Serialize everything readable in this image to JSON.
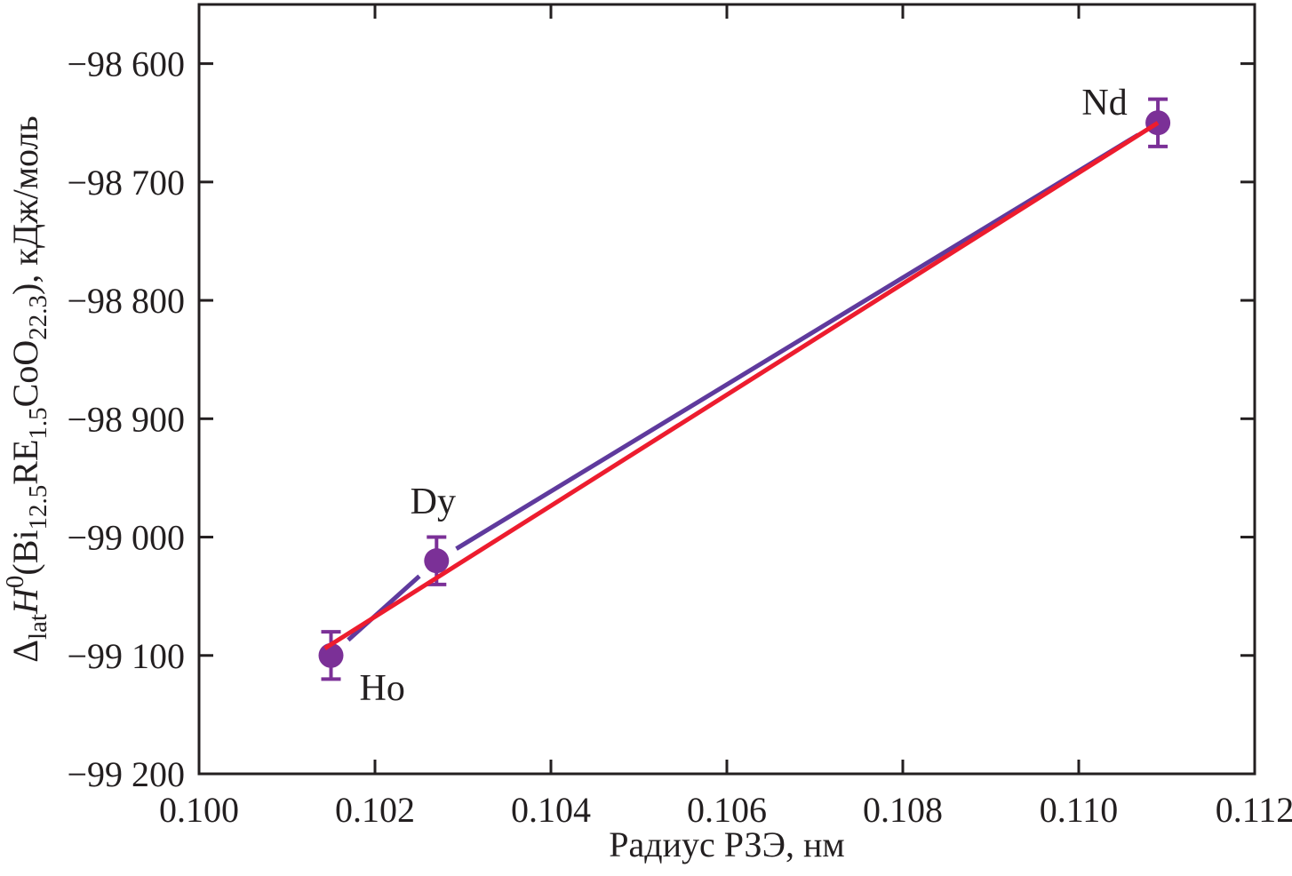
{
  "figure": {
    "background": "#ffffff",
    "frame_color": "#231f20",
    "text_color": "#231f20"
  },
  "chart_data": {
    "type": "scatter",
    "title": "",
    "x_axis": {
      "label_plain": "Радиус РЗЭ, нм",
      "min": 0.1,
      "max": 0.112,
      "ticks": [
        0.1,
        0.102,
        0.104,
        0.106,
        0.108,
        0.11,
        0.112
      ],
      "tick_labels": [
        "0.100",
        "0.102",
        "0.104",
        "0.106",
        "0.108",
        "0.110",
        "0.112"
      ],
      "grid": false
    },
    "y_axis": {
      "label_plain": "ΔlatH0(Bi12.5RE1.5CoO22.3), кДж/моль",
      "label_rich": [
        {
          "t": "Δ"
        },
        {
          "t": "lat",
          "sub": true
        },
        {
          "t": "H",
          "italic": true
        },
        {
          "t": "0",
          "sup": true
        },
        {
          "t": "(Bi"
        },
        {
          "t": "12.5",
          "sub": true
        },
        {
          "t": "RE"
        },
        {
          "t": "1.5",
          "sub": true
        },
        {
          "t": "CoO"
        },
        {
          "t": "22.3",
          "sub": true
        },
        {
          "t": "), кДж/моль"
        }
      ],
      "min": -99200,
      "max": -98550,
      "ticks": [
        -98600,
        -98700,
        -98800,
        -98900,
        -99000,
        -99100,
        -99200
      ],
      "tick_labels": [
        "−98 600",
        "−98 700",
        "−98 800",
        "−98 900",
        "−99 000",
        "−99 100",
        "−99 200"
      ],
      "grid": false
    },
    "series": [
      {
        "name": "experimental-points",
        "type": "scatter+line",
        "line_color": "#5f3a9d",
        "marker_color": "#7b3097",
        "marker": "circle",
        "points": [
          {
            "x": 0.1015,
            "y": -99100,
            "err": 20,
            "label": "Ho",
            "label_dx": 32,
            "label_dy": 50,
            "label_anchor": "start"
          },
          {
            "x": 0.1027,
            "y": -99020,
            "err": 20,
            "label": "Dy",
            "label_dx": -4,
            "label_dy": -53,
            "label_anchor": "middle"
          },
          {
            "x": 0.1109,
            "y": -98650,
            "err": 20,
            "label": "Nd",
            "label_dx": -60,
            "label_dy": -9,
            "label_anchor": "middle"
          }
        ]
      },
      {
        "name": "linear-fit",
        "type": "line",
        "line_color": "#ed1c2e",
        "points": [
          {
            "x": 0.10143,
            "y": -99094
          },
          {
            "x": 0.1109,
            "y": -98650
          }
        ]
      }
    ],
    "legend": null
  }
}
